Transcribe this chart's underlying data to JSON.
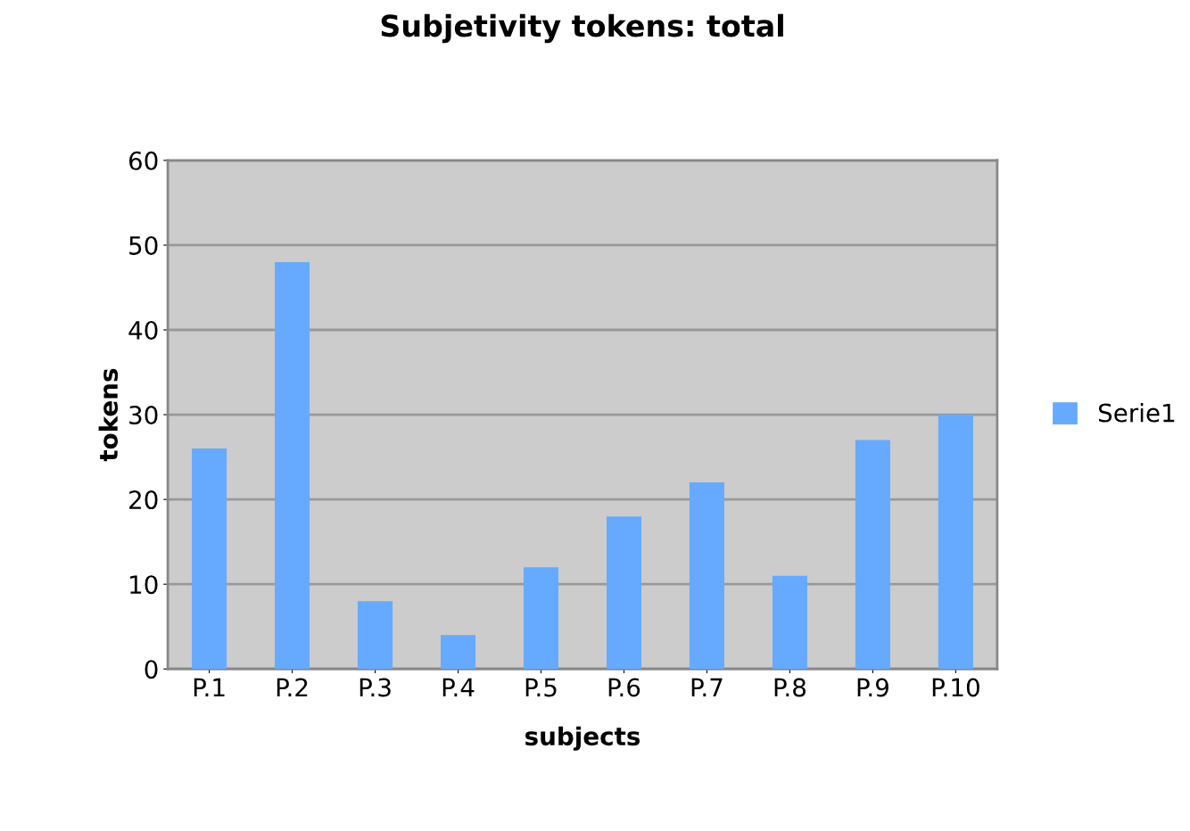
{
  "chart_data": {
    "type": "bar",
    "title": "Subjetivity tokens: total",
    "xlabel": "subjects",
    "ylabel": "tokens",
    "categories": [
      "P.1",
      "P.2",
      "P.3",
      "P.4",
      "P.5",
      "P.6",
      "P.7",
      "P.8",
      "P.9",
      "P.10"
    ],
    "series": [
      {
        "name": "Serie1",
        "color": "#66aaff",
        "values": [
          26,
          48,
          8,
          4,
          12,
          18,
          22,
          11,
          27,
          30
        ]
      }
    ],
    "ylim": [
      0,
      60
    ],
    "yticks": [
      0,
      10,
      20,
      30,
      40,
      50,
      60
    ],
    "grid": "y",
    "legend": "right"
  }
}
